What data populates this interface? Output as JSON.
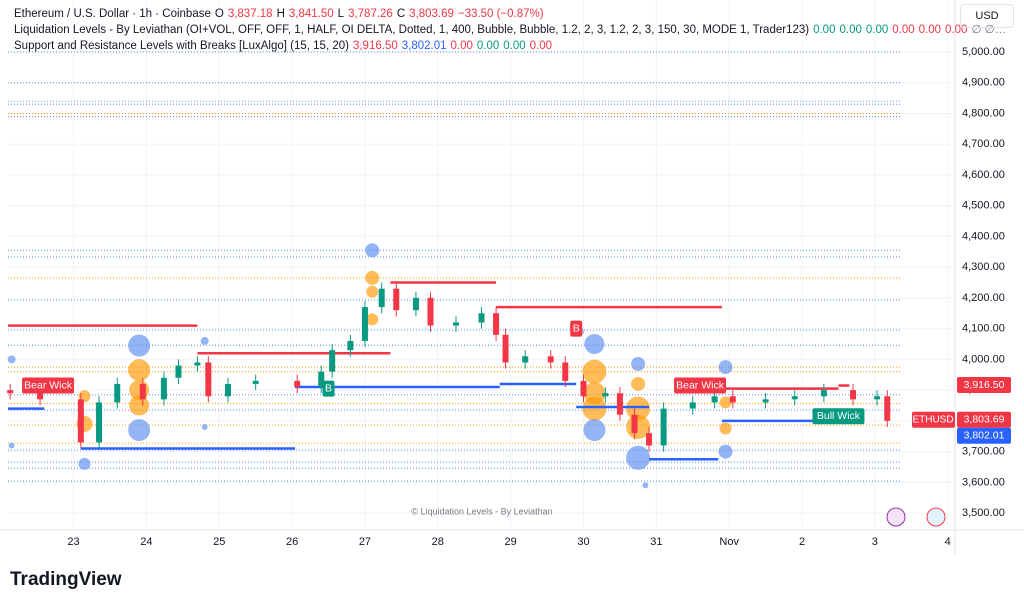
{
  "header": {
    "line1": [
      {
        "text": "Ethereum / U.S. Dollar · 1h · Coinbase",
        "color": "#131722"
      },
      {
        "text": "O",
        "color": "#131722"
      },
      {
        "text": "3,837.18",
        "color": "#f23645"
      },
      {
        "text": "H",
        "color": "#131722"
      },
      {
        "text": "3,841.50",
        "color": "#f23645"
      },
      {
        "text": "L",
        "color": "#131722"
      },
      {
        "text": "3,787.26",
        "color": "#f23645"
      },
      {
        "text": "C",
        "color": "#131722"
      },
      {
        "text": "3,803.69",
        "color": "#f23645"
      },
      {
        "text": "−33.50 (−0.87%)",
        "color": "#f23645"
      }
    ],
    "line2": [
      {
        "text": "Liquidation Levels - By Leviathan (OI+VOL, OFF, OFF, 1, HALF, OI DELTA, Dotted, 1, 400, Bubble, Bubble, 1.2, 2, 3, 1.2, 2, 3, 150, 30, MODE 1, Trader123)",
        "color": "#131722"
      },
      {
        "text": "0.00",
        "color": "#089981"
      },
      {
        "text": "0.00",
        "color": "#089981"
      },
      {
        "text": "0.00",
        "color": "#089981"
      },
      {
        "text": "0.00",
        "color": "#f23645"
      },
      {
        "text": "0.00",
        "color": "#f23645"
      },
      {
        "text": "0.00",
        "color": "#f23645"
      },
      {
        "text": "∅ ∅…",
        "color": "#787b86"
      }
    ],
    "line3": [
      {
        "text": "Support and Resistance Levels with Breaks [LuxAlgo] (15, 15, 20)",
        "color": "#131722"
      },
      {
        "text": "3,916.50",
        "color": "#f23645"
      },
      {
        "text": "3,802.01",
        "color": "#2962ff"
      },
      {
        "text": "0.00",
        "color": "#f23645"
      },
      {
        "text": "0.00",
        "color": "#089981"
      },
      {
        "text": "0.00",
        "color": "#089981"
      },
      {
        "text": "0.00",
        "color": "#f23645"
      }
    ],
    "currency": "USD"
  },
  "chart_data": {
    "type": "candlestick",
    "x": [
      -0.87,
      -0.46,
      0.1,
      0.35,
      0.6,
      0.95,
      1.24,
      1.44,
      1.7,
      1.85,
      2.12,
      2.5,
      3.07,
      3.4,
      3.55,
      3.8,
      4.0,
      4.23,
      4.43,
      4.7,
      4.9,
      5.25,
      5.6,
      5.8,
      5.93,
      6.2,
      6.55,
      6.75,
      7.0,
      7.3,
      7.5,
      7.7,
      7.9,
      8.1,
      8.5,
      8.8,
      9.05,
      9.5,
      9.9,
      10.3,
      10.7,
      11.03,
      11.17
    ],
    "open": [
      3900,
      3890,
      3870,
      3730,
      3860,
      3920,
      3870,
      3940,
      3980,
      3990,
      3880,
      3920,
      3930,
      3910,
      3960,
      4030,
      4060,
      4170,
      4230,
      4160,
      4200,
      4110,
      4120,
      4150,
      4080,
      3990,
      4010,
      3990,
      3930,
      3880,
      3890,
      3820,
      3760,
      3720,
      3840,
      3860,
      3880,
      3860,
      3870,
      3880,
      3900,
      3870,
      3880
    ],
    "high": [
      3920,
      3910,
      3890,
      3880,
      3940,
      3940,
      3960,
      4000,
      4010,
      4010,
      3940,
      3950,
      3950,
      3980,
      4050,
      4080,
      4190,
      4250,
      4250,
      4220,
      4220,
      4140,
      4170,
      4170,
      4100,
      4030,
      4030,
      4010,
      3950,
      3910,
      3910,
      3840,
      3780,
      3860,
      3880,
      3900,
      3900,
      3890,
      3900,
      3920,
      3920,
      3900,
      3900
    ],
    "low": [
      3870,
      3850,
      3710,
      3710,
      3840,
      3850,
      3850,
      3920,
      3960,
      3860,
      3860,
      3900,
      3890,
      3890,
      3940,
      4010,
      4040,
      4150,
      4140,
      4140,
      4090,
      4090,
      4100,
      4060,
      3970,
      3970,
      3970,
      3910,
      3860,
      3860,
      3800,
      3740,
      3700,
      3700,
      3820,
      3840,
      3840,
      3840,
      3850,
      3860,
      3850,
      3850,
      3780
    ],
    "close": [
      3890,
      3870,
      3730,
      3860,
      3920,
      3870,
      3940,
      3980,
      3990,
      3880,
      3920,
      3930,
      3910,
      3960,
      4030,
      4060,
      4170,
      4230,
      4160,
      4200,
      4110,
      4120,
      4150,
      4080,
      3990,
      4010,
      3990,
      3930,
      3880,
      3890,
      3820,
      3760,
      3720,
      3840,
      3860,
      3880,
      3860,
      3870,
      3880,
      3900,
      3870,
      3880,
      3800
    ],
    "up_color": "#089981",
    "down_color": "#f23645",
    "xlim": [
      -0.9,
      12.1
    ],
    "xticks": [
      {
        "value": 0,
        "label": "23"
      },
      {
        "value": 1,
        "label": "24"
      },
      {
        "value": 2,
        "label": "25"
      },
      {
        "value": 3,
        "label": "26"
      },
      {
        "value": 4,
        "label": "27"
      },
      {
        "value": 5,
        "label": "28"
      },
      {
        "value": 6,
        "label": "29"
      },
      {
        "value": 7,
        "label": "30"
      },
      {
        "value": 8,
        "label": "31"
      },
      {
        "value": 9,
        "label": "Nov"
      },
      {
        "value": 10,
        "label": "2"
      },
      {
        "value": 11,
        "label": "3"
      },
      {
        "value": 12,
        "label": "4"
      }
    ],
    "ylim": [
      3445,
      5169
    ],
    "yticks": [
      {
        "value": 3500,
        "label": "3,500.00"
      },
      {
        "value": 3600,
        "label": "3,600.00"
      },
      {
        "value": 3700,
        "label": "3,700.00"
      },
      {
        "value": 3800,
        "label": "3,800.00"
      },
      {
        "value": 3900,
        "label": "3,900.00"
      },
      {
        "value": 4000,
        "label": "4,000.00"
      },
      {
        "value": 4100,
        "label": "4,100.00"
      },
      {
        "value": 4200,
        "label": "4,200.00"
      },
      {
        "value": 4300,
        "label": "4,300.00"
      },
      {
        "value": 4400,
        "label": "4,400.00"
      },
      {
        "value": 4500,
        "label": "4,500.00"
      },
      {
        "value": 4600,
        "label": "4,600.00"
      },
      {
        "value": 4700,
        "label": "4,700.00"
      },
      {
        "value": 4800,
        "label": "4,800.00"
      },
      {
        "value": 4900,
        "label": "4,900.00"
      },
      {
        "value": 5000,
        "label": "5,000.00"
      }
    ],
    "liquidation_lines": [
      {
        "price": 5000,
        "color": "#5b8def"
      },
      {
        "price": 4900,
        "color": "#5b8def"
      },
      {
        "price": 4840,
        "color": "#5b8def"
      },
      {
        "price": 4830,
        "color": "#5b8def"
      },
      {
        "price": 4800,
        "color": "#ff9800"
      },
      {
        "price": 4790,
        "color": "#5b8def"
      },
      {
        "price": 4355,
        "color": "#5b8def"
      },
      {
        "price": 4333,
        "color": "#5b8def"
      },
      {
        "price": 4265,
        "color": "#ff9800"
      },
      {
        "price": 4193,
        "color": "#5b8def"
      },
      {
        "price": 4095,
        "color": "#5b8def"
      },
      {
        "price": 4046,
        "color": "#5b8def"
      },
      {
        "price": 3975,
        "color": "#ff9800"
      },
      {
        "price": 3960,
        "color": "#ff9800"
      },
      {
        "price": 3885,
        "color": "#5b8def"
      },
      {
        "price": 3857,
        "color": "#ff9800"
      },
      {
        "price": 3835,
        "color": "#5b8def"
      },
      {
        "price": 3786,
        "color": "#ff9800"
      },
      {
        "price": 3728,
        "color": "#ff9800"
      },
      {
        "price": 3705,
        "color": "#5b8def"
      },
      {
        "price": 3666,
        "color": "#5b8def"
      },
      {
        "price": 3646,
        "color": "#5b8def"
      },
      {
        "price": 3604,
        "color": "#5b8def"
      }
    ],
    "levels": [
      {
        "x1": -0.9,
        "x2": 1.7,
        "price": 4110,
        "color": "#f23645"
      },
      {
        "x1": 1.7,
        "x2": 4.35,
        "price": 4020,
        "color": "#f23645"
      },
      {
        "x1": 4.35,
        "x2": 5.8,
        "price": 4250,
        "color": "#f23645"
      },
      {
        "x1": 5.8,
        "x2": 8.9,
        "price": 4170,
        "color": "#f23645"
      },
      {
        "x1": 8.9,
        "x2": 10.5,
        "price": 3905,
        "color": "#f23645"
      },
      {
        "x1": 10.5,
        "x2": 10.65,
        "price": 3915,
        "color": "#f23645"
      },
      {
        "x1": -0.9,
        "x2": -0.4,
        "price": 3840,
        "color": "#2962ff"
      },
      {
        "x1": 0.1,
        "x2": 3.04,
        "price": 3710,
        "color": "#2962ff"
      },
      {
        "x1": 3.04,
        "x2": 5.85,
        "price": 3910,
        "color": "#2962ff"
      },
      {
        "x1": 5.85,
        "x2": 6.9,
        "price": 3920,
        "color": "#2962ff"
      },
      {
        "x1": 6.9,
        "x2": 7.9,
        "price": 3845,
        "color": "#2962ff"
      },
      {
        "x1": 7.9,
        "x2": 8.85,
        "price": 3675,
        "color": "#2962ff"
      },
      {
        "x1": 8.9,
        "x2": 10.55,
        "price": 3800,
        "color": "#2962ff"
      }
    ],
    "bubbles": [
      {
        "x": -0.85,
        "price": 4000,
        "size": 4,
        "color": "#5b8def"
      },
      {
        "x": -0.85,
        "price": 3720,
        "size": 3,
        "color": "#5b8def"
      },
      {
        "x": 0.15,
        "price": 3880,
        "size": 6,
        "color": "#ff9800"
      },
      {
        "x": 0.15,
        "price": 3790,
        "size": 8,
        "color": "#ff9800"
      },
      {
        "x": 0.15,
        "price": 3660,
        "size": 6,
        "color": "#5b8def"
      },
      {
        "x": 0.9,
        "price": 4045,
        "size": 11,
        "color": "#5b8def"
      },
      {
        "x": 0.9,
        "price": 3965,
        "size": 11,
        "color": "#ff9800"
      },
      {
        "x": 0.9,
        "price": 3900,
        "size": 10,
        "color": "#ff9800"
      },
      {
        "x": 0.9,
        "price": 3850,
        "size": 10,
        "color": "#ff9800"
      },
      {
        "x": 0.9,
        "price": 3770,
        "size": 11,
        "color": "#5b8def"
      },
      {
        "x": 1.8,
        "price": 4060,
        "size": 4,
        "color": "#5b8def"
      },
      {
        "x": 1.8,
        "price": 3780,
        "size": 3,
        "color": "#5b8def"
      },
      {
        "x": 4.1,
        "price": 4355,
        "size": 7,
        "color": "#5b8def"
      },
      {
        "x": 4.1,
        "price": 4265,
        "size": 7,
        "color": "#ff9800"
      },
      {
        "x": 4.1,
        "price": 4220,
        "size": 6,
        "color": "#ff9800"
      },
      {
        "x": 4.1,
        "price": 4130,
        "size": 6,
        "color": "#ff9800"
      },
      {
        "x": 6.95,
        "price": 4090,
        "size": 4,
        "color": "#5b8def"
      },
      {
        "x": 7.15,
        "price": 4050,
        "size": 10,
        "color": "#5b8def"
      },
      {
        "x": 7.15,
        "price": 3960,
        "size": 12,
        "color": "#ff9800"
      },
      {
        "x": 7.15,
        "price": 3890,
        "size": 11,
        "color": "#ff9800"
      },
      {
        "x": 7.15,
        "price": 3840,
        "size": 12,
        "color": "#ff9800"
      },
      {
        "x": 7.15,
        "price": 3770,
        "size": 11,
        "color": "#5b8def"
      },
      {
        "x": 7.75,
        "price": 3985,
        "size": 7,
        "color": "#5b8def"
      },
      {
        "x": 7.75,
        "price": 3920,
        "size": 7,
        "color": "#ff9800"
      },
      {
        "x": 7.75,
        "price": 3840,
        "size": 12,
        "color": "#ff9800"
      },
      {
        "x": 7.75,
        "price": 3780,
        "size": 12,
        "color": "#ff9800"
      },
      {
        "x": 7.75,
        "price": 3680,
        "size": 12,
        "color": "#5b8def"
      },
      {
        "x": 7.85,
        "price": 3590,
        "size": 3,
        "color": "#5b8def"
      },
      {
        "x": 8.95,
        "price": 3975,
        "size": 7,
        "color": "#5b8def"
      },
      {
        "x": 8.95,
        "price": 3860,
        "size": 6,
        "color": "#ff9800"
      },
      {
        "x": 8.95,
        "price": 3775,
        "size": 6,
        "color": "#ff9800"
      },
      {
        "x": 8.95,
        "price": 3700,
        "size": 7,
        "color": "#5b8def"
      }
    ],
    "annotations": [
      {
        "text": "Bear Wick",
        "x": -0.35,
        "price": 3915,
        "color": "#f23645"
      },
      {
        "text": "Bear Wick",
        "x": 8.6,
        "price": 3915,
        "color": "#f23645"
      },
      {
        "text": "Bull Wick",
        "x": 10.5,
        "price": 3815,
        "color": "#089981"
      },
      {
        "text": "B",
        "x": 3.5,
        "price": 3905,
        "color": "#089981"
      },
      {
        "text": "B",
        "x": 6.9,
        "price": 4100,
        "color": "#f23645"
      }
    ],
    "price_tags": [
      {
        "value": 3916.5,
        "label": "3,916.50",
        "color": "#f23645"
      },
      {
        "value": 3803.69,
        "label": "3,803.69",
        "color": "#f23645",
        "symbol": "ETHUSD"
      },
      {
        "value": 3802.01,
        "label": "3,802.01",
        "color": "#2962ff"
      }
    ],
    "watermark": "© Liquidation Levels - By Leviathan"
  },
  "logo": "TradingView"
}
